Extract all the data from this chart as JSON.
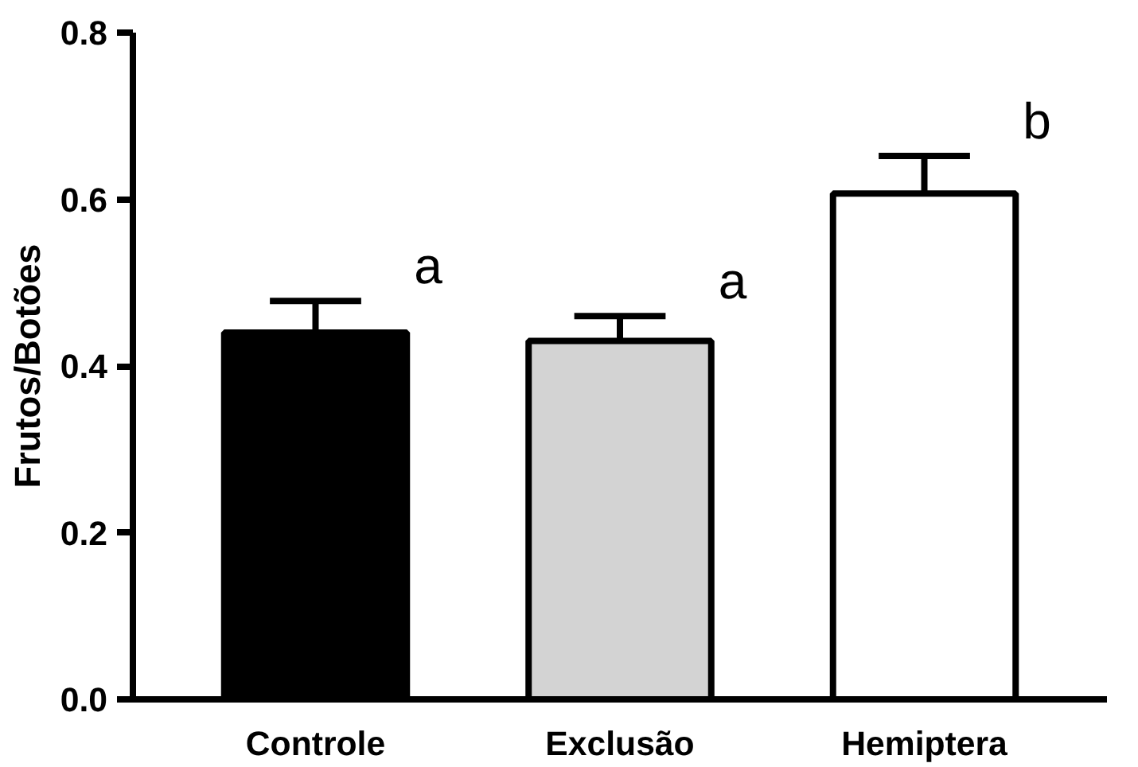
{
  "chart_data": {
    "type": "bar",
    "ylabel": "Frutos/Botões",
    "categories": [
      "Controle",
      "Exclusão",
      "Hemiptera"
    ],
    "values": [
      0.44,
      0.43,
      0.607
    ],
    "colors": [
      "#000000",
      "#d3d3d3",
      "#ffffff"
    ],
    "errors": [
      [
        0.44,
        0.478
      ],
      [
        0.43,
        0.46
      ],
      [
        0.607,
        0.652
      ]
    ],
    "ylim": [
      0,
      0.8
    ],
    "yticks": [
      {
        "value": 0,
        "label": "0.0"
      },
      {
        "value": 0.2,
        "label": "0.2"
      },
      {
        "value": 0.4,
        "label": "0.4"
      },
      {
        "value": 0.6,
        "label": "0.6"
      },
      {
        "value": 0.8,
        "label": "0.8"
      }
    ],
    "annotations": [
      "a",
      "a",
      "b"
    ],
    "grid": false
  }
}
